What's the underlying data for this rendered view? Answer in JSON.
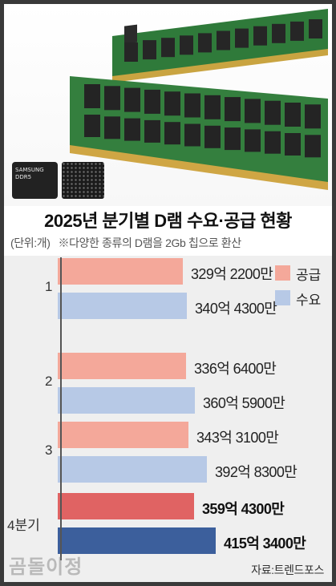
{
  "photo": {
    "chip_brand": "SAMSUNG",
    "chip_model": "DDR5"
  },
  "chart_data": {
    "type": "bar",
    "orientation": "horizontal",
    "title": "2025년 분기별 D램 수요·공급 현황",
    "unit_note": "(단위:개)",
    "footnote": "※다양한 종류의 D램을 2Gb 칩으로 환산",
    "categories": [
      "1",
      "2",
      "3",
      "4분기"
    ],
    "series": [
      {
        "name": "공급",
        "color": "#f4a89a",
        "highlight_color": "#e06363",
        "values": [
          32922000000,
          33664000000,
          34331000000,
          35943000000
        ],
        "labels": [
          "329억 2200만",
          "336억 6400만",
          "343억 3100만",
          "359억 4300만"
        ]
      },
      {
        "name": "수요",
        "color": "#b7c9e6",
        "highlight_color": "#3c5f9c",
        "values": [
          34043000000,
          36059000000,
          39283000000,
          41534000000
        ],
        "labels": [
          "340억 4300만",
          "360억 5900만",
          "392억 8300만",
          "415억 3400만"
        ]
      }
    ],
    "highlight_category_index": 3,
    "legend_position": "top-right",
    "source": "자료:트렌드포스"
  },
  "watermark": "곰돌이정"
}
